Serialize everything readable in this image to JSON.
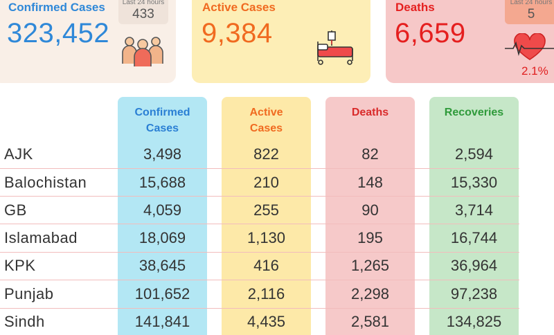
{
  "summary": {
    "confirmed": {
      "title": "Confirmed Cases",
      "value": "323,452",
      "last24_label": "Last 24 hours",
      "last24_value": "433",
      "icon": "people-icon",
      "color": "#2f88d8"
    },
    "active": {
      "title": "Active Cases",
      "value": "9,384",
      "icon": "hospital-bed-icon",
      "color": "#f06a20"
    },
    "deaths": {
      "title": "Deaths",
      "value": "6,659",
      "last24_label": "Last 24 hours",
      "last24_value": "5",
      "percent": "2.1%",
      "icon": "heartbeat-icon",
      "color": "#e51f1f"
    }
  },
  "table": {
    "headers": [
      {
        "line1": "Confirmed",
        "line2": "Cases",
        "color": "#2a7fd4"
      },
      {
        "line1": "Active",
        "line2": "Cases",
        "color": "#f06a20"
      },
      {
        "line1": "Deaths",
        "line2": "",
        "color": "#d92a2a"
      },
      {
        "line1": "Recoveries",
        "line2": "",
        "color": "#2e9a3a"
      }
    ],
    "rows": [
      {
        "region": "AJK",
        "confirmed": "3,498",
        "active": "822",
        "deaths": "82",
        "recoveries": "2,594"
      },
      {
        "region": "Balochistan",
        "confirmed": "15,688",
        "active": "210",
        "deaths": "148",
        "recoveries": "15,330"
      },
      {
        "region": "GB",
        "confirmed": "4,059",
        "active": "255",
        "deaths": "90",
        "recoveries": "3,714"
      },
      {
        "region": "Islamabad",
        "confirmed": "18,069",
        "active": "1,130",
        "deaths": "195",
        "recoveries": "16,744"
      },
      {
        "region": "KPK",
        "confirmed": "38,645",
        "active": "416",
        "deaths": "1,265",
        "recoveries": "36,964"
      },
      {
        "region": "Punjab",
        "confirmed": "101,652",
        "active": "2,116",
        "deaths": "2,298",
        "recoveries": "97,238"
      },
      {
        "region": "Sindh",
        "confirmed": "141,841",
        "active": "4,435",
        "deaths": "2,581",
        "recoveries": "134,825"
      }
    ]
  }
}
